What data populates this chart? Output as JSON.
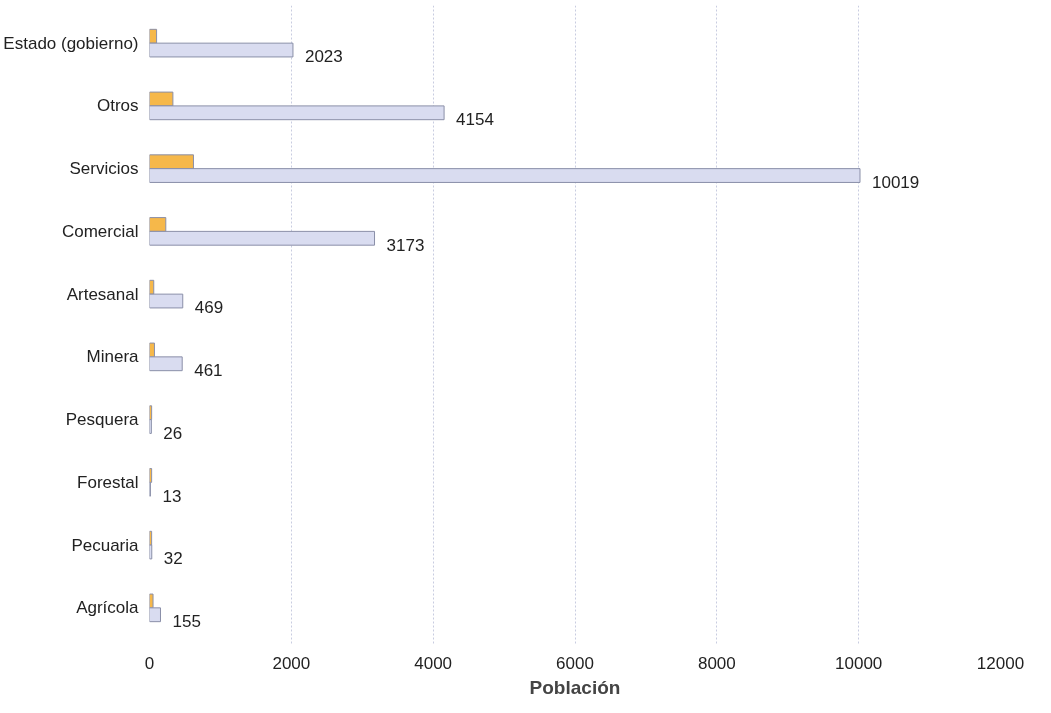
{
  "chart_data": {
    "type": "bar",
    "orientation": "horizontal",
    "xlabel": "Población",
    "categories": [
      "Estado (gobierno)",
      "Otros",
      "Servicios",
      "Comercial",
      "Artesanal",
      "Minera",
      "Pesquera",
      "Forestal",
      "Pecuaria",
      "Agrícola"
    ],
    "series": [
      {
        "color": "#f6b84a",
        "values": [
          100,
          330,
          620,
          230,
          60,
          70,
          30,
          30,
          30,
          50
        ]
      },
      {
        "color": "#d9dcf0",
        "values": [
          2023,
          4154,
          10019,
          3173,
          469,
          461,
          26,
          13,
          32,
          155
        ],
        "value_labels": [
          "2023",
          "4154",
          "10019",
          "3173",
          "469",
          "461",
          "26",
          "13",
          "32",
          "155"
        ]
      }
    ],
    "xlim": [
      0,
      12000
    ],
    "xticks": [
      0,
      2000,
      4000,
      6000,
      8000,
      10000,
      12000
    ],
    "grid": "x"
  }
}
